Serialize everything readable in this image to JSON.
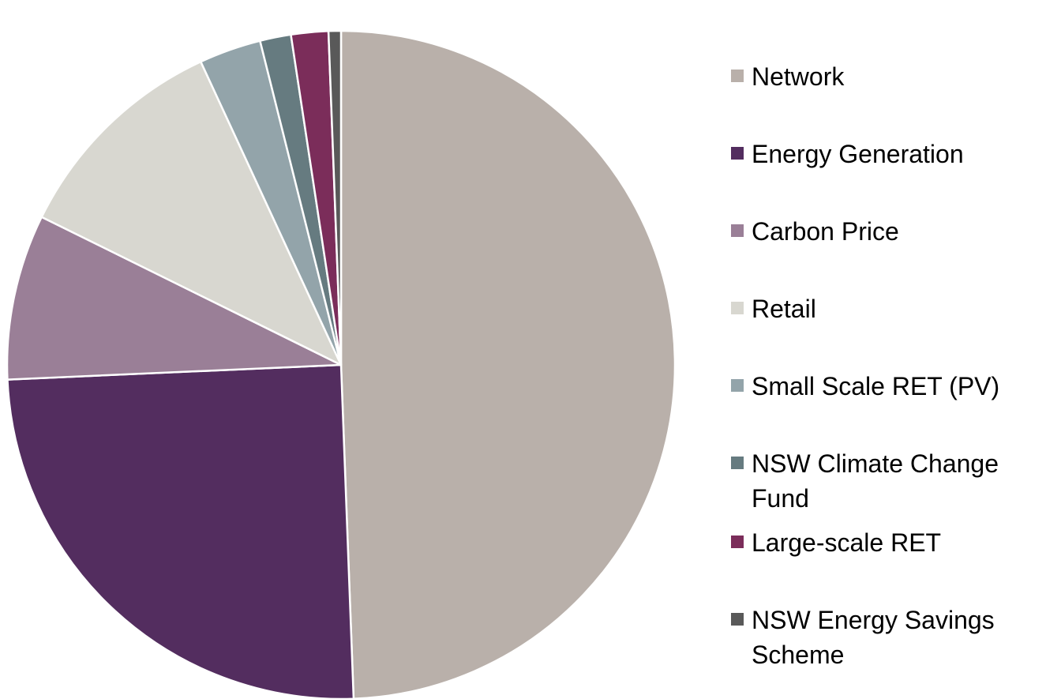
{
  "chart_data": {
    "type": "pie",
    "categories": [
      "Network",
      "Energy Generation",
      "Carbon Price",
      "Retail",
      "Small Scale RET (PV)",
      "NSW Climate Change Fund",
      "Large-scale RET",
      "NSW Energy Savings Scheme"
    ],
    "values": [
      49.4,
      24.9,
      8.0,
      10.8,
      3.0,
      1.5,
      1.8,
      0.6
    ],
    "colors": [
      "#b9b0aa",
      "#532d5f",
      "#9a7f97",
      "#d8d7d0",
      "#93a4aa",
      "#667b80",
      "#7b2d5a",
      "#595959"
    ],
    "legend": "right"
  }
}
